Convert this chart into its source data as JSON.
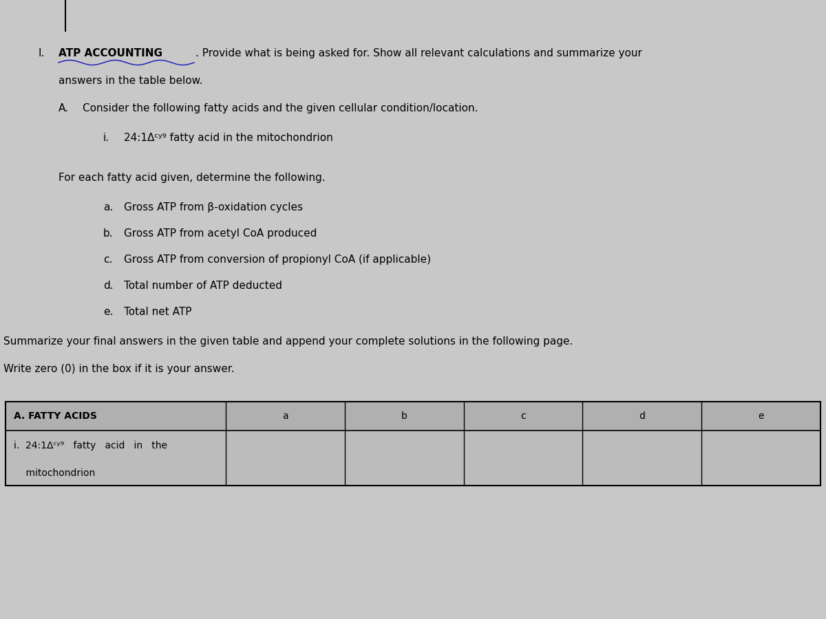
{
  "bg_color": "#c8c8c8",
  "text_color": "#000000",
  "title_number": "I.",
  "title_bold": "ATP ACCOUNTING",
  "title_rest": ". Provide what is being asked for. Show all relevant calculations and summarize your",
  "title_line2": "answers in the table below.",
  "section_a_label": "A.",
  "section_a_text": "Consider the following fatty acids and the given cellular condition/location.",
  "item_i_label": "i.",
  "item_i_text": "24:1Δᶜʸ⁹ fatty acid in the mitochondrion",
  "for_each_text": "For each fatty acid given, determine the following.",
  "sub_items": [
    {
      "label": "a.",
      "text": "Gross ATP from β-oxidation cycles"
    },
    {
      "label": "b.",
      "text": "Gross ATP from acetyl CoA produced"
    },
    {
      "label": "c.",
      "text": "Gross ATP from conversion of propionyl CoA (if applicable)"
    },
    {
      "label": "d.",
      "text": "Total number of ATP deducted"
    },
    {
      "label": "e.",
      "text": "Total net ATP"
    }
  ],
  "summarize_line1": "Summarize your final answers in the given table and append your complete solutions in the following page.",
  "summarize_line2": "Write zero (0) in the box if it is your answer.",
  "table_header_col0": "A. FATTY ACIDS",
  "table_header_cols": [
    "a",
    "b",
    "c",
    "d",
    "e"
  ],
  "table_row_line1": "i.  24:1Δᶜʸ⁹   fatty   acid   in   the",
  "table_row_line2": "    mitochondrion",
  "font_size_main": 11,
  "font_size_table": 10,
  "wave_color": "#2222bb",
  "line_color": "#000000"
}
